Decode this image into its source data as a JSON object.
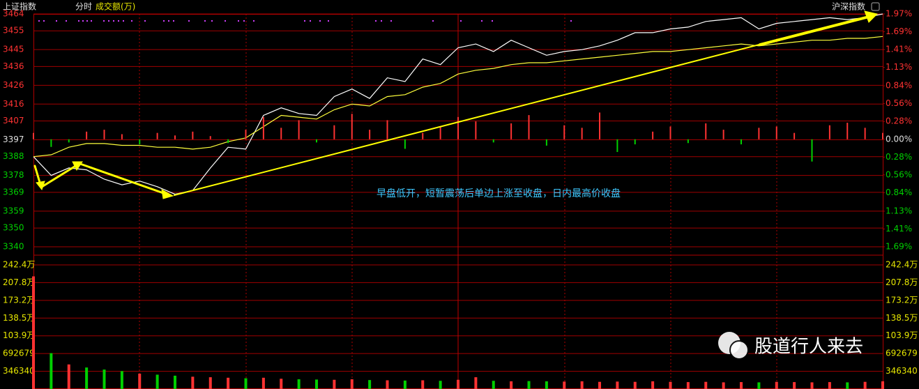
{
  "header": {
    "index": "上证指数",
    "period": "分时",
    "metric": "成交额(万)",
    "compare": "沪深指数"
  },
  "annotation": "早盘低开，短暂震荡后单边上涨至收盘，日内最高价收盘",
  "watermark": "股道行人来去",
  "chart_data": [
    {
      "type": "line",
      "x": [
        0,
        5,
        10,
        15,
        20,
        25,
        30,
        35,
        40,
        45,
        50,
        55,
        60,
        65,
        70,
        75,
        80,
        85,
        90,
        95,
        100,
        105,
        110,
        115,
        120,
        125,
        130,
        135,
        140,
        145,
        150,
        155,
        160,
        165,
        170,
        175,
        180,
        185,
        190,
        195,
        200,
        205,
        210,
        215,
        220,
        225,
        230,
        235,
        240
      ],
      "xlim": [
        0,
        240
      ],
      "ylim": [
        3340,
        3464
      ],
      "yticks": [
        3464,
        3455,
        3445,
        3436,
        3426,
        3416,
        3407,
        3397,
        3388,
        3378,
        3369,
        3359,
        3350,
        3340
      ],
      "y2lim": [
        -1.69,
        1.97
      ],
      "y2ticks": [
        {
          "value": 1.97,
          "label": "1.97%"
        },
        {
          "value": 1.69,
          "label": "1.69%"
        },
        {
          "value": 1.41,
          "label": "1.41%"
        },
        {
          "value": 1.13,
          "label": "1.13%"
        },
        {
          "value": 0.84,
          "label": "0.84%"
        },
        {
          "value": 0.56,
          "label": "0.56%"
        },
        {
          "value": 0.28,
          "label": "0.28%"
        },
        {
          "value": 0,
          "label": "0.00%"
        },
        {
          "value": -0.28,
          "label": "0.28%"
        },
        {
          "value": -0.56,
          "label": "0.56%"
        },
        {
          "value": -0.84,
          "label": "0.84%"
        },
        {
          "value": -1.13,
          "label": "1.13%"
        },
        {
          "value": -1.41,
          "label": "1.41%"
        },
        {
          "value": -1.69,
          "label": "1.69%"
        }
      ],
      "up_color": "#ff3232",
      "down_color": "#00d000",
      "flat_color": "#e0e0e0",
      "grid": true,
      "series": [
        {
          "color": "#ffffff",
          "values": [
            3388,
            3378,
            3382,
            3381,
            3376,
            3373,
            3375,
            3372,
            3368,
            3370,
            3382,
            3393,
            3392,
            3410,
            3414,
            3411,
            3410,
            3420,
            3424,
            3419,
            3430,
            3428,
            3440,
            3437,
            3446,
            3448,
            3444,
            3450,
            3446,
            3442,
            3444,
            3445,
            3447,
            3450,
            3454,
            3454,
            3456,
            3457,
            3460,
            3461,
            3462,
            3456,
            3459,
            3460,
            3461,
            3462,
            3461,
            3462,
            3464
          ]
        },
        {
          "color": "#ffff3c",
          "values": [
            3388,
            3389,
            3393,
            3395,
            3395,
            3394,
            3394,
            3393,
            3393,
            3392,
            3393,
            3396,
            3398,
            3404,
            3410,
            3409,
            3408,
            3413,
            3416,
            3415,
            3420,
            3421,
            3425,
            3427,
            3432,
            3434,
            3435,
            3437,
            3438,
            3438,
            3439,
            3440,
            3441,
            3442,
            3443,
            3444,
            3444,
            3445,
            3446,
            3447,
            3448,
            3447,
            3448,
            3449,
            3450,
            3450,
            3451,
            3451,
            3452
          ]
        },
        {
          "type": "bar",
          "axis": "y2",
          "values": [
            0.1,
            -0.12,
            -0.05,
            0.12,
            0.15,
            0.08,
            -0.08,
            0.1,
            0.06,
            0.12,
            0.05,
            -0.06,
            0.15,
            0.35,
            0.18,
            0.3,
            -0.05,
            0.22,
            0.4,
            0.15,
            0.3,
            -0.15,
            0.1,
            0.2,
            0.35,
            0.28,
            -0.05,
            0.25,
            0.38,
            -0.1,
            0.22,
            0.18,
            0.42,
            -0.2,
            -0.08,
            0.12,
            0.2,
            -0.06,
            0.25,
            0.15,
            -0.08,
            0.18,
            0.2,
            0.1,
            -0.35,
            0.22,
            0.26,
            0.18,
            0.1
          ]
        }
      ]
    },
    {
      "type": "bar",
      "x": [
        0,
        5,
        10,
        15,
        20,
        25,
        30,
        35,
        40,
        45,
        50,
        55,
        60,
        65,
        70,
        75,
        80,
        85,
        90,
        95,
        100,
        105,
        110,
        115,
        120,
        125,
        130,
        135,
        140,
        145,
        150,
        155,
        160,
        165,
        170,
        175,
        180,
        185,
        190,
        195,
        200,
        205,
        210,
        215,
        220,
        225,
        230,
        235,
        240
      ],
      "xlim": [
        0,
        240
      ],
      "ylim": [
        0,
        2424000
      ],
      "yticks": [
        {
          "value": 2424000,
          "label": "242.4万"
        },
        {
          "value": 2078000,
          "label": "207.8万"
        },
        {
          "value": 1732000,
          "label": "173.2万"
        },
        {
          "value": 1385000,
          "label": "138.5万"
        },
        {
          "value": 1039000,
          "label": "103.9万"
        },
        692679,
        346340
      ],
      "tick_color": "#e6e600",
      "grid": true,
      "values": [
        2200000,
        700000,
        480000,
        420000,
        380000,
        350000,
        300000,
        280000,
        260000,
        240000,
        230000,
        220000,
        210000,
        220000,
        200000,
        190000,
        185000,
        180000,
        190000,
        175000,
        170000,
        165000,
        170000,
        160000,
        180000,
        230000,
        160000,
        150000,
        155000,
        150000,
        145000,
        150000,
        140000,
        145000,
        140000,
        150000,
        140000,
        135000,
        140000,
        130000,
        135000,
        130000,
        140000,
        135000,
        130000,
        135000,
        130000,
        140000,
        150000
      ]
    }
  ]
}
